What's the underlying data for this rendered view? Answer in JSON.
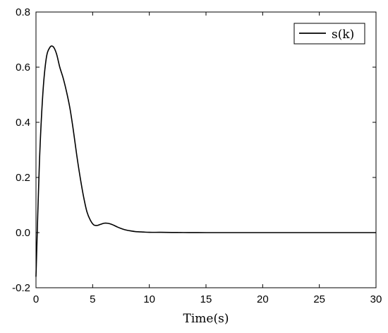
{
  "chart_data": {
    "type": "line",
    "title": "",
    "xlabel": "Time(s)",
    "ylabel": "",
    "xlim": [
      0,
      30
    ],
    "ylim": [
      -0.2,
      0.8
    ],
    "xticks": [
      0,
      5,
      10,
      15,
      20,
      25,
      30
    ],
    "yticks": [
      -0.2,
      0.0,
      0.2,
      0.4,
      0.6,
      0.8
    ],
    "xtick_labels": [
      "0",
      "5",
      "10",
      "15",
      "20",
      "25",
      "30"
    ],
    "ytick_labels": [
      "-0.2",
      "0.0",
      "0.2",
      "0.4",
      "0.6",
      "0.8"
    ],
    "grid": false,
    "legend": "top-right",
    "series": [
      {
        "name": "s(k)",
        "color": "#000000",
        "x": [
          0,
          0.3,
          0.6,
          0.9,
          1.2,
          1.5,
          1.8,
          2.1,
          2.4,
          2.7,
          3.0,
          3.3,
          3.6,
          3.9,
          4.2,
          4.5,
          4.8,
          5.1,
          5.4,
          5.7,
          6.0,
          6.3,
          6.6,
          6.9,
          7.2,
          7.5,
          7.8,
          8.1,
          8.4,
          8.7,
          9.0,
          9.5,
          10,
          11,
          12,
          13,
          14,
          15,
          17.5,
          20,
          22.5,
          25,
          27.5,
          30
        ],
        "values": [
          -0.16,
          0.25,
          0.5,
          0.63,
          0.67,
          0.675,
          0.65,
          0.6,
          0.56,
          0.51,
          0.45,
          0.37,
          0.28,
          0.2,
          0.13,
          0.075,
          0.045,
          0.028,
          0.026,
          0.03,
          0.034,
          0.034,
          0.031,
          0.026,
          0.02,
          0.015,
          0.011,
          0.008,
          0.006,
          0.004,
          0.003,
          0.002,
          0.001,
          0.001,
          0.0005,
          0.0003,
          0.0002,
          0.0,
          0.0,
          0.0,
          0.0,
          0.0,
          0.0,
          0.0
        ]
      }
    ]
  }
}
